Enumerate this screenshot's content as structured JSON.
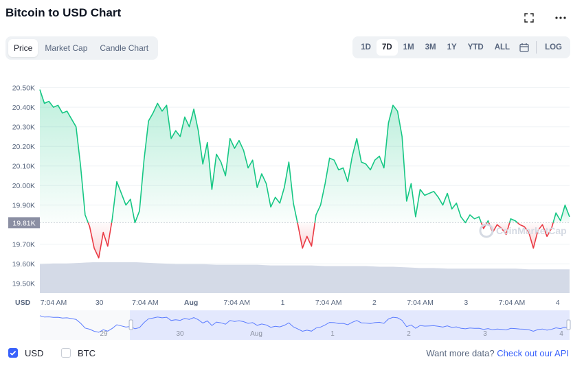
{
  "header": {
    "title": "Bitcoin to USD Chart"
  },
  "icons": {
    "fullscreen": "fullscreen-icon",
    "more": "more-icon",
    "calendar": "calendar-icon"
  },
  "tabs": [
    {
      "label": "Price",
      "active": true
    },
    {
      "label": "Market Cap",
      "active": false
    },
    {
      "label": "Candle Chart",
      "active": false
    }
  ],
  "ranges": [
    {
      "label": "1D",
      "active": false
    },
    {
      "label": "7D",
      "active": true
    },
    {
      "label": "1M",
      "active": false
    },
    {
      "label": "3M",
      "active": false
    },
    {
      "label": "1Y",
      "active": false
    },
    {
      "label": "YTD",
      "active": false
    },
    {
      "label": "ALL",
      "active": false
    }
  ],
  "log_label": "LOG",
  "footer": {
    "usd_label": "USD",
    "btc_label": "BTC",
    "more_text": "Want more data?",
    "link_text": "Check out our API"
  },
  "watermark": "CoinMarketCap",
  "colors": {
    "up": "#16c784",
    "down": "#ea3943",
    "accent": "#3861fb",
    "volume": "#cfd6e4"
  },
  "chart_data": {
    "type": "line",
    "title": "Bitcoin to USD Chart",
    "currency_label": "USD",
    "current_price_label": "19.81K",
    "baseline": 19810,
    "y_ticks": [
      "20.50K",
      "20.40K",
      "20.30K",
      "20.20K",
      "20.10K",
      "20.00K",
      "19.90K",
      "19.70K",
      "19.60K",
      "19.50K"
    ],
    "x_ticks": [
      "7:04 AM",
      "30",
      "7:04 AM",
      "Aug",
      "7:04 AM",
      "1",
      "7:04 AM",
      "2",
      "7:04 AM",
      "3",
      "7:04 AM",
      "4"
    ],
    "navigator_ticks": [
      "29",
      "30",
      "Aug",
      "1",
      "2",
      "3",
      "4"
    ],
    "ylim": [
      19450,
      20555
    ],
    "x": [
      0,
      1,
      2,
      3,
      4,
      5,
      6,
      7,
      8,
      9,
      10,
      11,
      12,
      13,
      14,
      15,
      16,
      17,
      18,
      19,
      20,
      21,
      22,
      23,
      24,
      25,
      26,
      27,
      28,
      29,
      30,
      31,
      32,
      33,
      34,
      35,
      36,
      37,
      38,
      39,
      40,
      41,
      42,
      43,
      44,
      45,
      46,
      47,
      48,
      49,
      50,
      51,
      52,
      53,
      54,
      55,
      56,
      57,
      58,
      59,
      60,
      61,
      62,
      63,
      64,
      65,
      66,
      67,
      68,
      69,
      70,
      71,
      72,
      73,
      74,
      75,
      76,
      77,
      78,
      79,
      80,
      81,
      82,
      83,
      84,
      85,
      86,
      87,
      88,
      89,
      90,
      91,
      92,
      93,
      94,
      95,
      96,
      97,
      98,
      99,
      100,
      101,
      102,
      103,
      104,
      105,
      106,
      107,
      108,
      109,
      110,
      111,
      112,
      113,
      114,
      115,
      116,
      117
    ],
    "values": [
      20490,
      20420,
      20430,
      20400,
      20410,
      20370,
      20380,
      20340,
      20300,
      20100,
      19850,
      19790,
      19680,
      19630,
      19760,
      19690,
      19830,
      20020,
      19960,
      19900,
      19930,
      19810,
      19870,
      20130,
      20330,
      20370,
      20420,
      20380,
      20410,
      20240,
      20280,
      20250,
      20350,
      20300,
      20390,
      20280,
      20110,
      20220,
      19980,
      20160,
      20120,
      20050,
      20240,
      20190,
      20230,
      20180,
      20090,
      20130,
      19990,
      20060,
      20010,
      19890,
      19940,
      19910,
      19990,
      20120,
      19910,
      19800,
      19680,
      19740,
      19690,
      19850,
      19900,
      20010,
      20140,
      20130,
      20080,
      20090,
      20020,
      20150,
      20240,
      20120,
      20110,
      20080,
      20130,
      20150,
      20090,
      20320,
      20410,
      20380,
      20250,
      19920,
      20010,
      19840,
      19980,
      19950,
      19960,
      19970,
      19940,
      19900,
      19960,
      19880,
      19910,
      19840,
      19810,
      19850,
      19830,
      19840,
      19780,
      19820,
      19760,
      19800,
      19780,
      19750,
      19830,
      19820,
      19800,
      19790,
      19760,
      19680,
      19770,
      19800,
      19740,
      19780,
      19860,
      19820,
      19900,
      19840
    ],
    "volume_relative": [
      0.45,
      0.46,
      0.46,
      0.47,
      0.48,
      0.48,
      0.48,
      0.48,
      0.47,
      0.46,
      0.45,
      0.45,
      0.45,
      0.44,
      0.44,
      0.44,
      0.44,
      0.43,
      0.43,
      0.43,
      0.43,
      0.42,
      0.42,
      0.42,
      0.42,
      0.41,
      0.41,
      0.4,
      0.39,
      0.39,
      0.38,
      0.38,
      0.38,
      0.38,
      0.38,
      0.38,
      0.37,
      0.37,
      0.37,
      0.37
    ],
    "navigator_window": [
      0.17,
      1.0
    ]
  }
}
